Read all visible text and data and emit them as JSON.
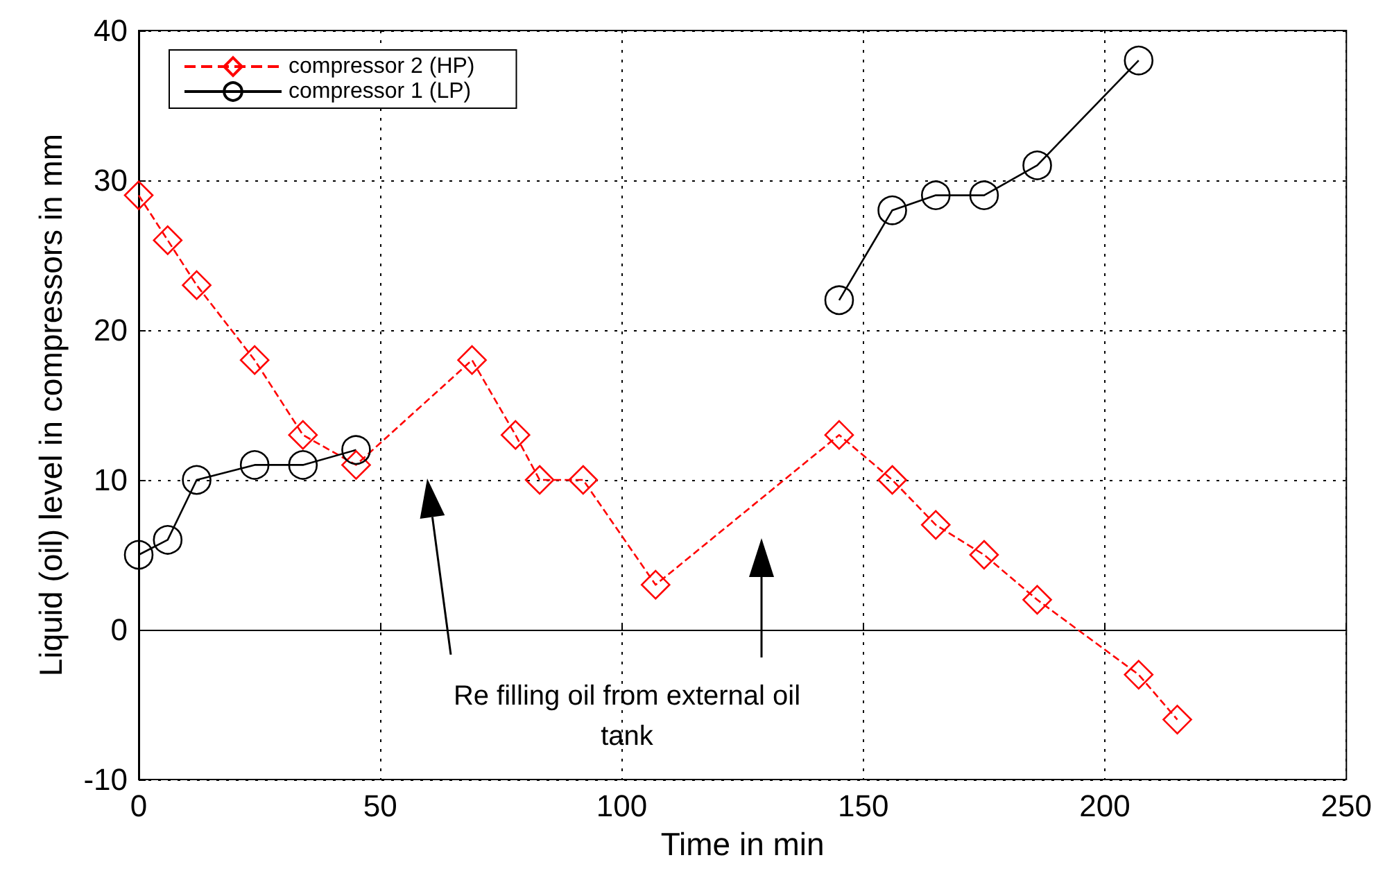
{
  "chart_data": {
    "type": "line",
    "xlabel": "Time in min",
    "ylabel": "Liquid (oil) level in compressors in mm",
    "xlim": [
      0,
      250
    ],
    "xticks": [
      0,
      50,
      100,
      150,
      200,
      250
    ],
    "ylim": [
      -10,
      40
    ],
    "yticks": [
      -10,
      0,
      10,
      20,
      30,
      40
    ],
    "grid": true,
    "legend": "top left",
    "annotations": [
      "Re filling oil from external oil tank"
    ],
    "series": [
      {
        "name": "compressor 2 (HP)",
        "color": "#ff0000",
        "marker": "diamond",
        "line_style": "dashed",
        "x": [
          0,
          6,
          12,
          24,
          34,
          45,
          69,
          78,
          83,
          92,
          107,
          145,
          156,
          165,
          175,
          186,
          207,
          215
        ],
        "values": [
          29,
          26,
          23,
          18,
          13,
          11,
          18,
          13,
          10,
          10,
          3,
          13,
          10,
          7,
          5,
          2,
          -3,
          -6
        ]
      },
      {
        "name": "compressor 1 (LP)",
        "color": "#000000",
        "marker": "circle",
        "line_style": "solid",
        "x": [
          0,
          6,
          12,
          24,
          34,
          45,
          95,
          145,
          156,
          165,
          175,
          186,
          207
        ],
        "values": [
          5,
          6,
          10,
          11,
          11,
          12,
          null,
          22,
          28,
          29,
          29,
          31,
          38
        ]
      }
    ]
  }
}
